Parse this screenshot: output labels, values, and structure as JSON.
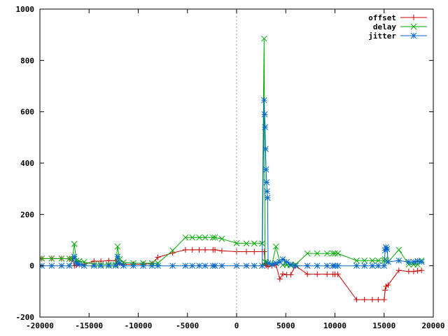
{
  "chart_data": {
    "type": "line",
    "title": "",
    "xlabel": "",
    "ylabel": "",
    "xlim": [
      -20000,
      20000
    ],
    "ylim": [
      -200,
      1000
    ],
    "xticks": [
      -20000,
      -15000,
      -10000,
      -5000,
      0,
      5000,
      10000,
      15000,
      20000
    ],
    "yticks": [
      -200,
      0,
      200,
      400,
      600,
      800,
      1000
    ],
    "xtick_labels": [
      "-20000",
      "-15000",
      "-10000",
      "-5000",
      "0",
      "5000",
      "10000",
      "15000",
      "20000"
    ],
    "ytick_labels": [
      "-200",
      "0",
      "200",
      "400",
      "600",
      "800",
      "1000"
    ],
    "grid": false,
    "zero_line_x": 0,
    "legend_position": "top-right",
    "series": [
      {
        "name": "offset",
        "color": "#cc0000",
        "marker": "plus",
        "points": [
          [
            -19800,
            28
          ],
          [
            -18800,
            28
          ],
          [
            -17800,
            28
          ],
          [
            -17000,
            27
          ],
          [
            -16700,
            27
          ],
          [
            -16500,
            0
          ],
          [
            -16300,
            2
          ],
          [
            -16000,
            4
          ],
          [
            -15500,
            6
          ],
          [
            -14500,
            18
          ],
          [
            -13800,
            18
          ],
          [
            -13000,
            20
          ],
          [
            -12300,
            20
          ],
          [
            -12100,
            5
          ],
          [
            -11900,
            10
          ],
          [
            -11500,
            6
          ],
          [
            -10500,
            6
          ],
          [
            -9500,
            6
          ],
          [
            -8600,
            8
          ],
          [
            -8000,
            33
          ],
          [
            -6500,
            50
          ],
          [
            -5200,
            62
          ],
          [
            -4500,
            62
          ],
          [
            -3800,
            62
          ],
          [
            -3200,
            62
          ],
          [
            -2400,
            62
          ],
          [
            -2200,
            62
          ],
          [
            -1500,
            58
          ],
          [
            0,
            55
          ],
          [
            1000,
            55
          ],
          [
            1800,
            55
          ],
          [
            2600,
            55
          ],
          [
            2800,
            55
          ],
          [
            2900,
            10
          ],
          [
            3000,
            2
          ],
          [
            3200,
            -3
          ],
          [
            3600,
            0
          ],
          [
            4000,
            3
          ],
          [
            4400,
            -52
          ],
          [
            4700,
            -32
          ],
          [
            5100,
            -35
          ],
          [
            5500,
            -35
          ],
          [
            6000,
            0
          ],
          [
            7200,
            -33
          ],
          [
            8200,
            -33
          ],
          [
            9200,
            -33
          ],
          [
            9800,
            -33
          ],
          [
            10000,
            -33
          ],
          [
            10300,
            -33
          ],
          [
            12200,
            -132
          ],
          [
            13000,
            -132
          ],
          [
            13800,
            -132
          ],
          [
            14400,
            -132
          ],
          [
            15000,
            -132
          ],
          [
            15100,
            -95
          ],
          [
            15200,
            -80
          ],
          [
            15400,
            -75
          ],
          [
            16500,
            -18
          ],
          [
            17500,
            -22
          ],
          [
            18000,
            -22
          ],
          [
            18400,
            -20
          ],
          [
            18800,
            -18
          ]
        ]
      },
      {
        "name": "delay",
        "color": "#00aa00",
        "marker": "cross",
        "points": [
          [
            -19800,
            28
          ],
          [
            -18800,
            28
          ],
          [
            -17800,
            28
          ],
          [
            -17000,
            27
          ],
          [
            -16700,
            27
          ],
          [
            -16500,
            85
          ],
          [
            -16300,
            20
          ],
          [
            -16000,
            18
          ],
          [
            -15500,
            15
          ],
          [
            -14500,
            5
          ],
          [
            -13800,
            5
          ],
          [
            -13000,
            5
          ],
          [
            -12300,
            5
          ],
          [
            -12100,
            75
          ],
          [
            -11900,
            25
          ],
          [
            -11500,
            13
          ],
          [
            -10500,
            10
          ],
          [
            -9500,
            10
          ],
          [
            -8600,
            10
          ],
          [
            -8000,
            10
          ],
          [
            -6500,
            60
          ],
          [
            -5200,
            110
          ],
          [
            -4500,
            110
          ],
          [
            -3800,
            110
          ],
          [
            -3200,
            110
          ],
          [
            -2400,
            110
          ],
          [
            -2200,
            110
          ],
          [
            -1500,
            105
          ],
          [
            0,
            88
          ],
          [
            1000,
            87
          ],
          [
            1800,
            87
          ],
          [
            2600,
            87
          ],
          [
            2800,
            885
          ],
          [
            2900,
            15
          ],
          [
            3000,
            12
          ],
          [
            3200,
            10
          ],
          [
            3600,
            5
          ],
          [
            4000,
            75
          ],
          [
            4400,
            15
          ],
          [
            4700,
            3
          ],
          [
            5100,
            3
          ],
          [
            5500,
            2
          ],
          [
            6000,
            5
          ],
          [
            7200,
            48
          ],
          [
            8200,
            48
          ],
          [
            9200,
            48
          ],
          [
            9800,
            48
          ],
          [
            10000,
            48
          ],
          [
            10300,
            48
          ],
          [
            12200,
            20
          ],
          [
            13000,
            20
          ],
          [
            13800,
            20
          ],
          [
            14400,
            20
          ],
          [
            15000,
            20
          ],
          [
            15100,
            25
          ],
          [
            15200,
            20
          ],
          [
            15400,
            15
          ],
          [
            16500,
            62
          ],
          [
            17500,
            5
          ],
          [
            18000,
            5
          ],
          [
            18400,
            5
          ],
          [
            18800,
            20
          ]
        ]
      },
      {
        "name": "jitter",
        "color": "#0066cc",
        "marker": "star",
        "points": [
          [
            -19800,
            0
          ],
          [
            -18800,
            0
          ],
          [
            -17800,
            0
          ],
          [
            -17000,
            0
          ],
          [
            -16500,
            35
          ],
          [
            -16300,
            10
          ],
          [
            -16000,
            5
          ],
          [
            -15500,
            0
          ],
          [
            -14500,
            0
          ],
          [
            -13800,
            0
          ],
          [
            -13000,
            0
          ],
          [
            -12300,
            0
          ],
          [
            -12100,
            35
          ],
          [
            -11900,
            10
          ],
          [
            -11500,
            0
          ],
          [
            -10500,
            0
          ],
          [
            -9500,
            0
          ],
          [
            -8600,
            0
          ],
          [
            -8000,
            0
          ],
          [
            -6500,
            0
          ],
          [
            -5200,
            0
          ],
          [
            -4500,
            0
          ],
          [
            -3800,
            0
          ],
          [
            -3200,
            0
          ],
          [
            -2400,
            0
          ],
          [
            -2200,
            0
          ],
          [
            -1500,
            0
          ],
          [
            0,
            0
          ],
          [
            1000,
            0
          ],
          [
            1800,
            0
          ],
          [
            2600,
            0
          ],
          [
            2800,
            645
          ],
          [
            2850,
            590
          ],
          [
            2900,
            540
          ],
          [
            2950,
            455
          ],
          [
            3000,
            375
          ],
          [
            3050,
            325
          ],
          [
            3100,
            290
          ],
          [
            3150,
            265
          ],
          [
            3200,
            10
          ],
          [
            3600,
            5
          ],
          [
            4000,
            10
          ],
          [
            4400,
            15
          ],
          [
            4700,
            25
          ],
          [
            5100,
            15
          ],
          [
            5500,
            5
          ],
          [
            6000,
            0
          ],
          [
            7200,
            0
          ],
          [
            8200,
            0
          ],
          [
            9200,
            0
          ],
          [
            9800,
            0
          ],
          [
            10000,
            0
          ],
          [
            10300,
            0
          ],
          [
            12200,
            0
          ],
          [
            13000,
            0
          ],
          [
            13800,
            0
          ],
          [
            14400,
            0
          ],
          [
            15000,
            0
          ],
          [
            15100,
            60
          ],
          [
            15200,
            72
          ],
          [
            15300,
            65
          ],
          [
            15400,
            15
          ],
          [
            16500,
            20
          ],
          [
            17500,
            15
          ],
          [
            18000,
            15
          ],
          [
            18400,
            18
          ],
          [
            18800,
            15
          ]
        ]
      }
    ]
  }
}
